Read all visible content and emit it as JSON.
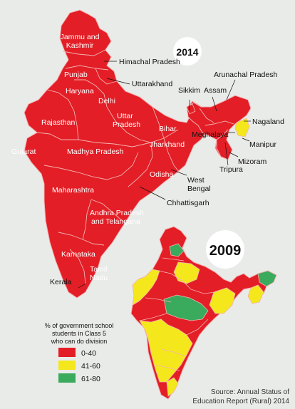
{
  "colors": {
    "band_0_40": "#e31e26",
    "band_41_60": "#f4e81c",
    "band_61_80": "#3aaa5c",
    "background": "#e9ebe8",
    "border": "#f3b3b3"
  },
  "map_2014": {
    "year": "2014",
    "labels": {
      "jk1": "Jammu and",
      "jk2": "Kashmir",
      "hp": "Himachal Pradesh",
      "punjab": "Punjab",
      "uttarakhand": "Uttarakhand",
      "haryana": "Haryana",
      "delhi": "Delhi",
      "rajasthan": "Rajasthan",
      "up1": "Uttar",
      "up2": "Pradesh",
      "bihar": "Bihar",
      "sikkim": "Sikkim",
      "assam": "Assam",
      "arunachal": "Arunachal Pradesh",
      "nagaland": "Nagaland",
      "meghalaya": "Meghalaya",
      "manipur": "Manipur",
      "tripura": "Tripura",
      "mizoram": "Mizoram",
      "gujarat": "Gujarat",
      "mp": "Madhya Pradesh",
      "jharkhand": "Jharkhand",
      "wb1": "West",
      "wb2": "Bengal",
      "odisha": "Odisha",
      "chhattisgarh": "Chhattisgarh",
      "maharashtra": "Maharashtra",
      "ap1": "Andhra Pradesh",
      "ap2": "and Telangana",
      "karnataka": "Karnataka",
      "tn1": "Tamil",
      "tn2": "Nadu",
      "kerala": "Kerala"
    }
  },
  "map_2009": {
    "year": "2009"
  },
  "legend": {
    "title1": "% of government school",
    "title2": "students in Class 5",
    "title3": "who can do division",
    "items": [
      {
        "label": "0-40",
        "color": "#e31e26"
      },
      {
        "label": "41-60",
        "color": "#f4e81c"
      },
      {
        "label": "61-80",
        "color": "#3aaa5c"
      }
    ]
  },
  "source": {
    "line1": "Source: Annual Status of",
    "line2": "Education Report (Rural) 2014"
  }
}
